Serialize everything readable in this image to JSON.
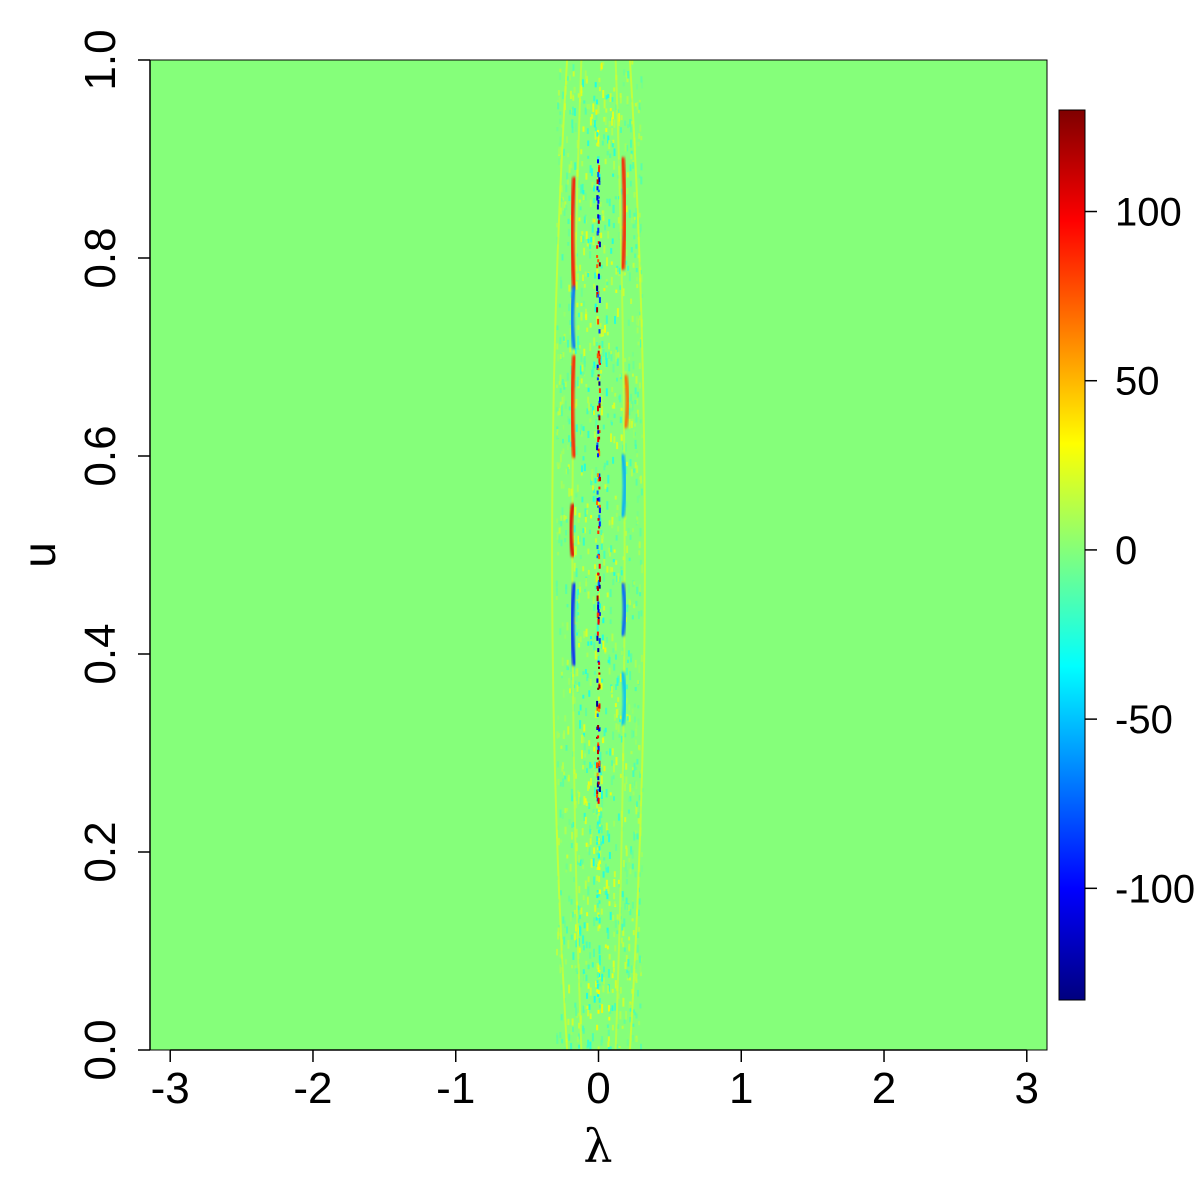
{
  "chart_data": {
    "type": "heatmap",
    "title": "",
    "xlabel": "λ",
    "ylabel": "u",
    "xlim": [
      -3.1416,
      3.1416
    ],
    "ylim": [
      0,
      1
    ],
    "x_ticks": [
      -3,
      -2,
      -1,
      0,
      1,
      2,
      3
    ],
    "x_tick_labels": [
      "-3",
      "-2",
      "-1",
      "0",
      "1",
      "2",
      "3"
    ],
    "y_ticks": [
      0,
      0.2,
      0.4,
      0.6,
      0.8,
      1.0
    ],
    "y_tick_labels": [
      "0.0",
      "0.2",
      "0.4",
      "0.6",
      "0.8",
      "1.0"
    ],
    "colorbar": {
      "range": [
        -133,
        130
      ],
      "ticks": [
        -100,
        -50,
        0,
        50,
        100
      ],
      "tick_labels": [
        "-100",
        "-50",
        "0",
        "50",
        "100"
      ],
      "colormap": "jet"
    },
    "background_value": 0,
    "active_band_lambda": [
      -0.3,
      0.3
    ],
    "features": [
      {
        "lambda": -0.17,
        "u_range": [
          0.77,
          0.88
        ],
        "value": 95
      },
      {
        "lambda": -0.17,
        "u_range": [
          0.6,
          0.7
        ],
        "value": 90
      },
      {
        "lambda": -0.18,
        "u_range": [
          0.5,
          0.55
        ],
        "value": 105
      },
      {
        "lambda": -0.17,
        "u_range": [
          0.39,
          0.47
        ],
        "value": -90
      },
      {
        "lambda": -0.17,
        "u_range": [
          0.71,
          0.77
        ],
        "value": -70
      },
      {
        "lambda": 0.17,
        "u_range": [
          0.79,
          0.9
        ],
        "value": 90
      },
      {
        "lambda": 0.19,
        "u_range": [
          0.63,
          0.68
        ],
        "value": 70
      },
      {
        "lambda": 0.17,
        "u_range": [
          0.42,
          0.47
        ],
        "value": -75
      },
      {
        "lambda": 0.17,
        "u_range": [
          0.54,
          0.6
        ],
        "value": -55
      },
      {
        "lambda": 0.17,
        "u_range": [
          0.33,
          0.38
        ],
        "value": -50
      },
      {
        "lambda": 0.0,
        "u_range": [
          0.25,
          0.9
        ],
        "value": -120
      },
      {
        "lambda": 0.0,
        "u_range": [
          0.3,
          0.85
        ],
        "value": 110
      }
    ]
  }
}
